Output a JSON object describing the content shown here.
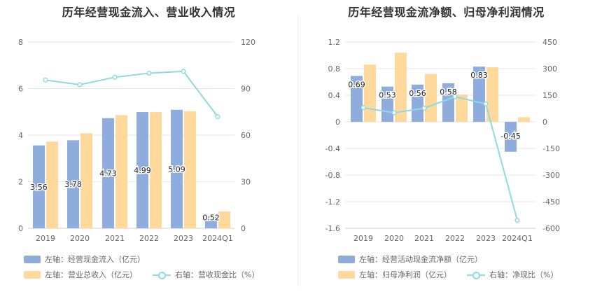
{
  "charts": [
    {
      "title": "历年经营现金流入、营业收入情况",
      "legend": {
        "bar1": "左轴：经营现金流入（亿元）",
        "bar2": "左轴：营业总收入（亿元）",
        "line": "右轴：营收现金比（%）"
      }
    },
    {
      "title": "历年经营现金流净额、归母净利润情况",
      "legend": {
        "bar1": "左轴：经营活动现金流净额（亿元）",
        "bar2": "左轴：归母净利润（亿元）",
        "line": "右轴：净现比（%）"
      }
    }
  ],
  "colors": {
    "bar1": "#8eacdc",
    "bar2": "#ffd89c",
    "line": "#8fd9e0",
    "grid": "#e6e6e6"
  },
  "chart_data": [
    {
      "type": "bar",
      "title": "历年经营现金流入、营业收入情况",
      "categories": [
        "2019",
        "2020",
        "2021",
        "2022",
        "2023",
        "2024Q1"
      ],
      "left_axis": {
        "ylim": [
          0,
          8
        ],
        "ticks": [
          0,
          2,
          4,
          6,
          8
        ]
      },
      "right_axis": {
        "ylim": [
          0,
          120
        ],
        "ticks": [
          0,
          30,
          60,
          90,
          120
        ]
      },
      "series": [
        {
          "name": "左轴：经营现金流入（亿元）",
          "axis": "left",
          "kind": "bar",
          "values": [
            3.56,
            3.78,
            4.73,
            4.99,
            5.09,
            0.52
          ],
          "labels": [
            "3.56",
            "3.78",
            "4.73",
            "4.99",
            "5.09",
            "0.52"
          ]
        },
        {
          "name": "左轴：营业总收入（亿元）",
          "axis": "left",
          "kind": "bar",
          "values": [
            3.72,
            4.08,
            4.86,
            4.99,
            5.03,
            0.72
          ]
        },
        {
          "name": "右轴：营收现金比（%）",
          "axis": "right",
          "kind": "line",
          "values": [
            95.5,
            92.5,
            97.3,
            99.9,
            101.1,
            71.9
          ]
        }
      ]
    },
    {
      "type": "bar",
      "title": "历年经营现金流净额、归母净利润情况",
      "categories": [
        "2019",
        "2020",
        "2021",
        "2022",
        "2023",
        "2024Q1"
      ],
      "left_axis": {
        "ylim": [
          -1.6,
          1.2
        ],
        "ticks": [
          -1.6,
          -1.2,
          -0.8,
          -0.4,
          0,
          0.4,
          0.8,
          1.2
        ]
      },
      "right_axis": {
        "ylim": [
          -600,
          450
        ],
        "ticks": [
          -600,
          -450,
          -300,
          -150,
          0,
          150,
          300,
          450
        ]
      },
      "series": [
        {
          "name": "左轴：经营活动现金流净额（亿元）",
          "axis": "left",
          "kind": "bar",
          "values": [
            0.69,
            0.53,
            0.56,
            0.58,
            0.83,
            -0.45
          ],
          "labels": [
            "0.69",
            "0.53",
            "0.56",
            "0.58",
            "0.83",
            "-0.45"
          ]
        },
        {
          "name": "左轴：归母净利润（亿元）",
          "axis": "left",
          "kind": "bar",
          "values": [
            0.86,
            1.04,
            0.72,
            0.41,
            0.82,
            0.07
          ]
        },
        {
          "name": "右轴：净现比（%）",
          "axis": "right",
          "kind": "line",
          "values": [
            80,
            51,
            77,
            142,
            101,
            -555
          ]
        }
      ]
    }
  ]
}
